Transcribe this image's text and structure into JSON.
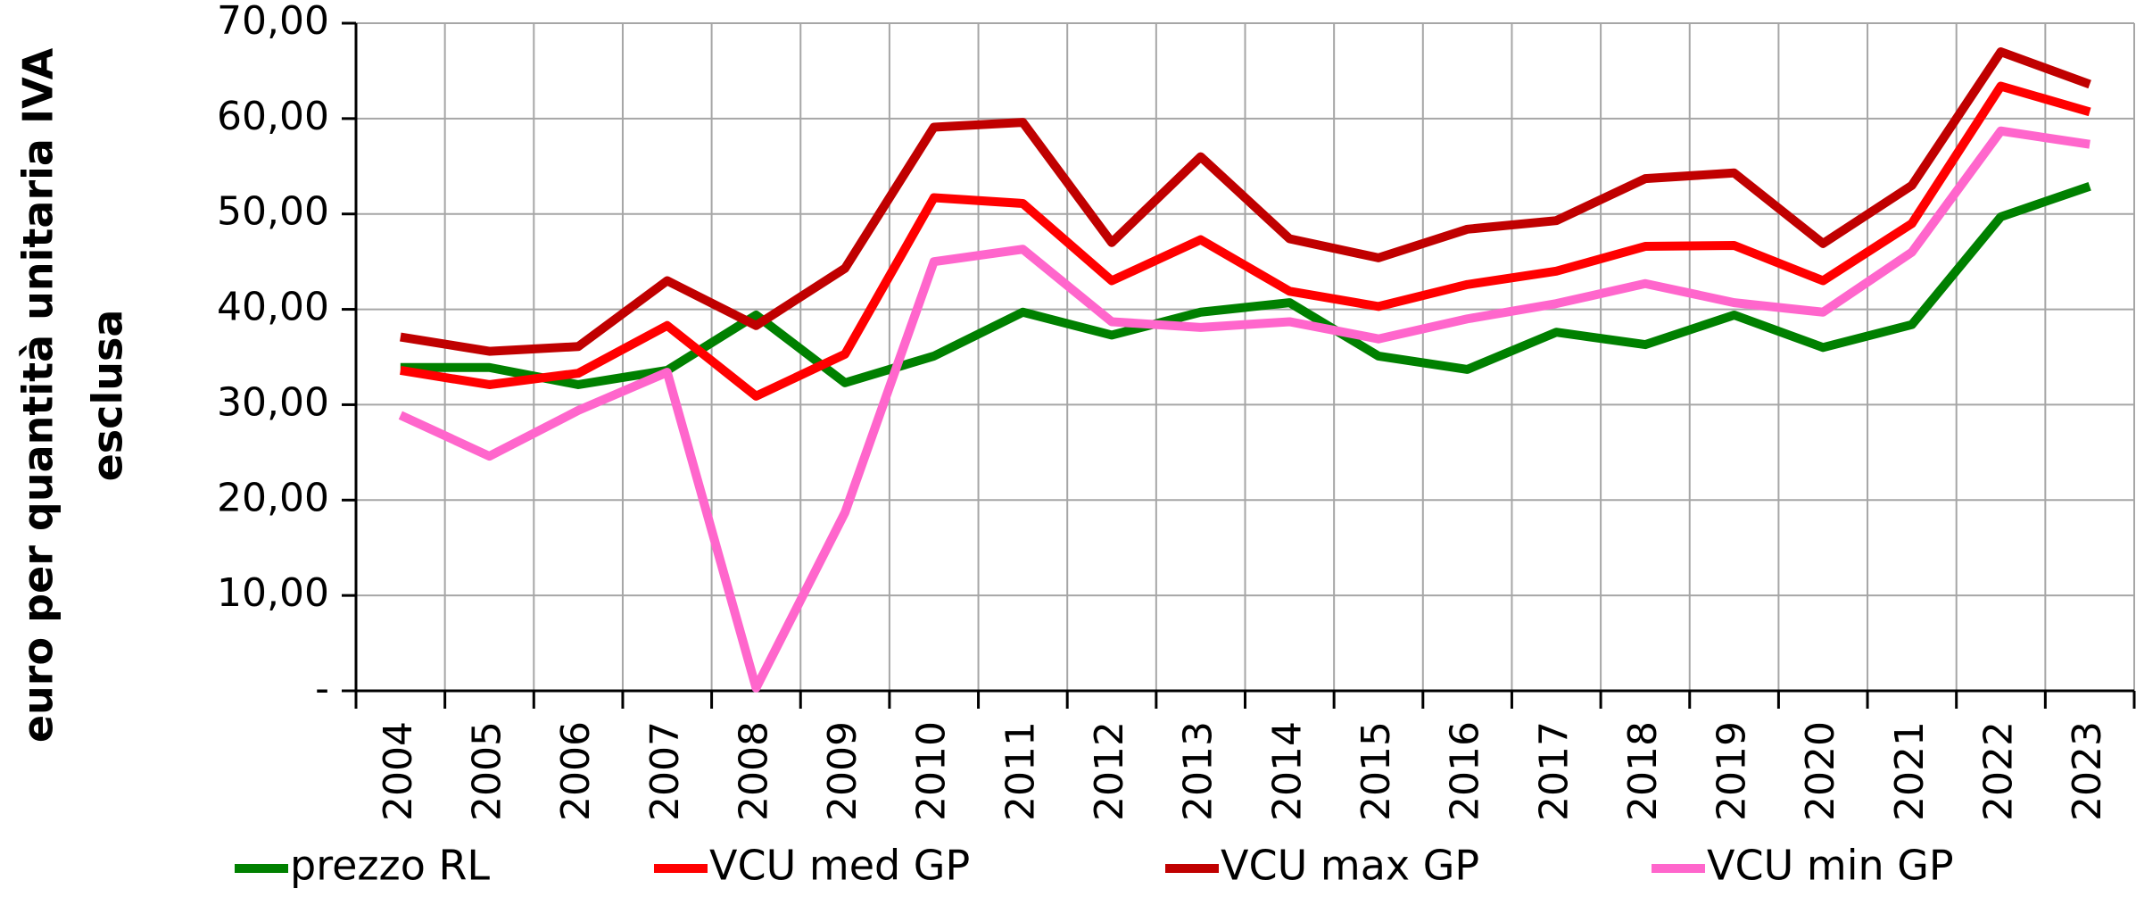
{
  "chart_data": {
    "type": "line",
    "ylabel": [
      "euro per quantità unitaria  IVA",
      "esclusa"
    ],
    "categories": [
      "2004",
      "2005",
      "2006",
      "2007",
      "2008",
      "2009",
      "2010",
      "2011",
      "2012",
      "2013",
      "2014",
      "2015",
      "2016",
      "2017",
      "2018",
      "2019",
      "2020",
      "2021",
      "2022",
      "2023"
    ],
    "series": [
      {
        "name": "prezzo RL",
        "color": "#008000",
        "values": [
          33.9,
          33.9,
          32.1,
          33.6,
          39.4,
          32.3,
          35.1,
          39.7,
          37.3,
          39.7,
          40.7,
          35.1,
          33.7,
          37.6,
          36.3,
          39.4,
          36.0,
          38.4,
          49.7,
          52.9
        ]
      },
      {
        "name": "VCU med GP",
        "color": "#ff0000",
        "values": [
          33.6,
          32.1,
          33.3,
          38.3,
          30.9,
          35.3,
          51.7,
          51.1,
          43.0,
          47.3,
          41.9,
          40.3,
          42.6,
          44.0,
          46.6,
          46.7,
          43.0,
          49.0,
          63.4,
          60.7
        ]
      },
      {
        "name": "VCU max GP",
        "color": "#c00000",
        "values": [
          37.1,
          35.6,
          36.1,
          43.0,
          38.3,
          44.3,
          59.1,
          59.6,
          47.0,
          56.0,
          47.4,
          45.4,
          48.4,
          49.3,
          53.7,
          54.3,
          46.9,
          53.0,
          67.0,
          63.6
        ]
      },
      {
        "name": "VCU min GP",
        "color": "#ff66cc",
        "values": [
          28.9,
          24.6,
          29.4,
          33.4,
          0.3,
          18.7,
          45.0,
          46.3,
          38.7,
          38.1,
          38.7,
          36.9,
          39.0,
          40.6,
          42.7,
          40.7,
          39.7,
          46.0,
          58.7,
          57.3
        ]
      }
    ],
    "ylim": [
      0,
      70
    ],
    "yticks": [
      {
        "value": 0,
        "label": "-"
      },
      {
        "value": 10,
        "label": "10,00"
      },
      {
        "value": 20,
        "label": "20,00"
      },
      {
        "value": 30,
        "label": "30,00"
      },
      {
        "value": 40,
        "label": "40,00"
      },
      {
        "value": 50,
        "label": "50,00"
      },
      {
        "value": 60,
        "label": "60,00"
      },
      {
        "value": 70,
        "label": "70,00"
      }
    ],
    "grid": true,
    "legend": "bottom"
  }
}
